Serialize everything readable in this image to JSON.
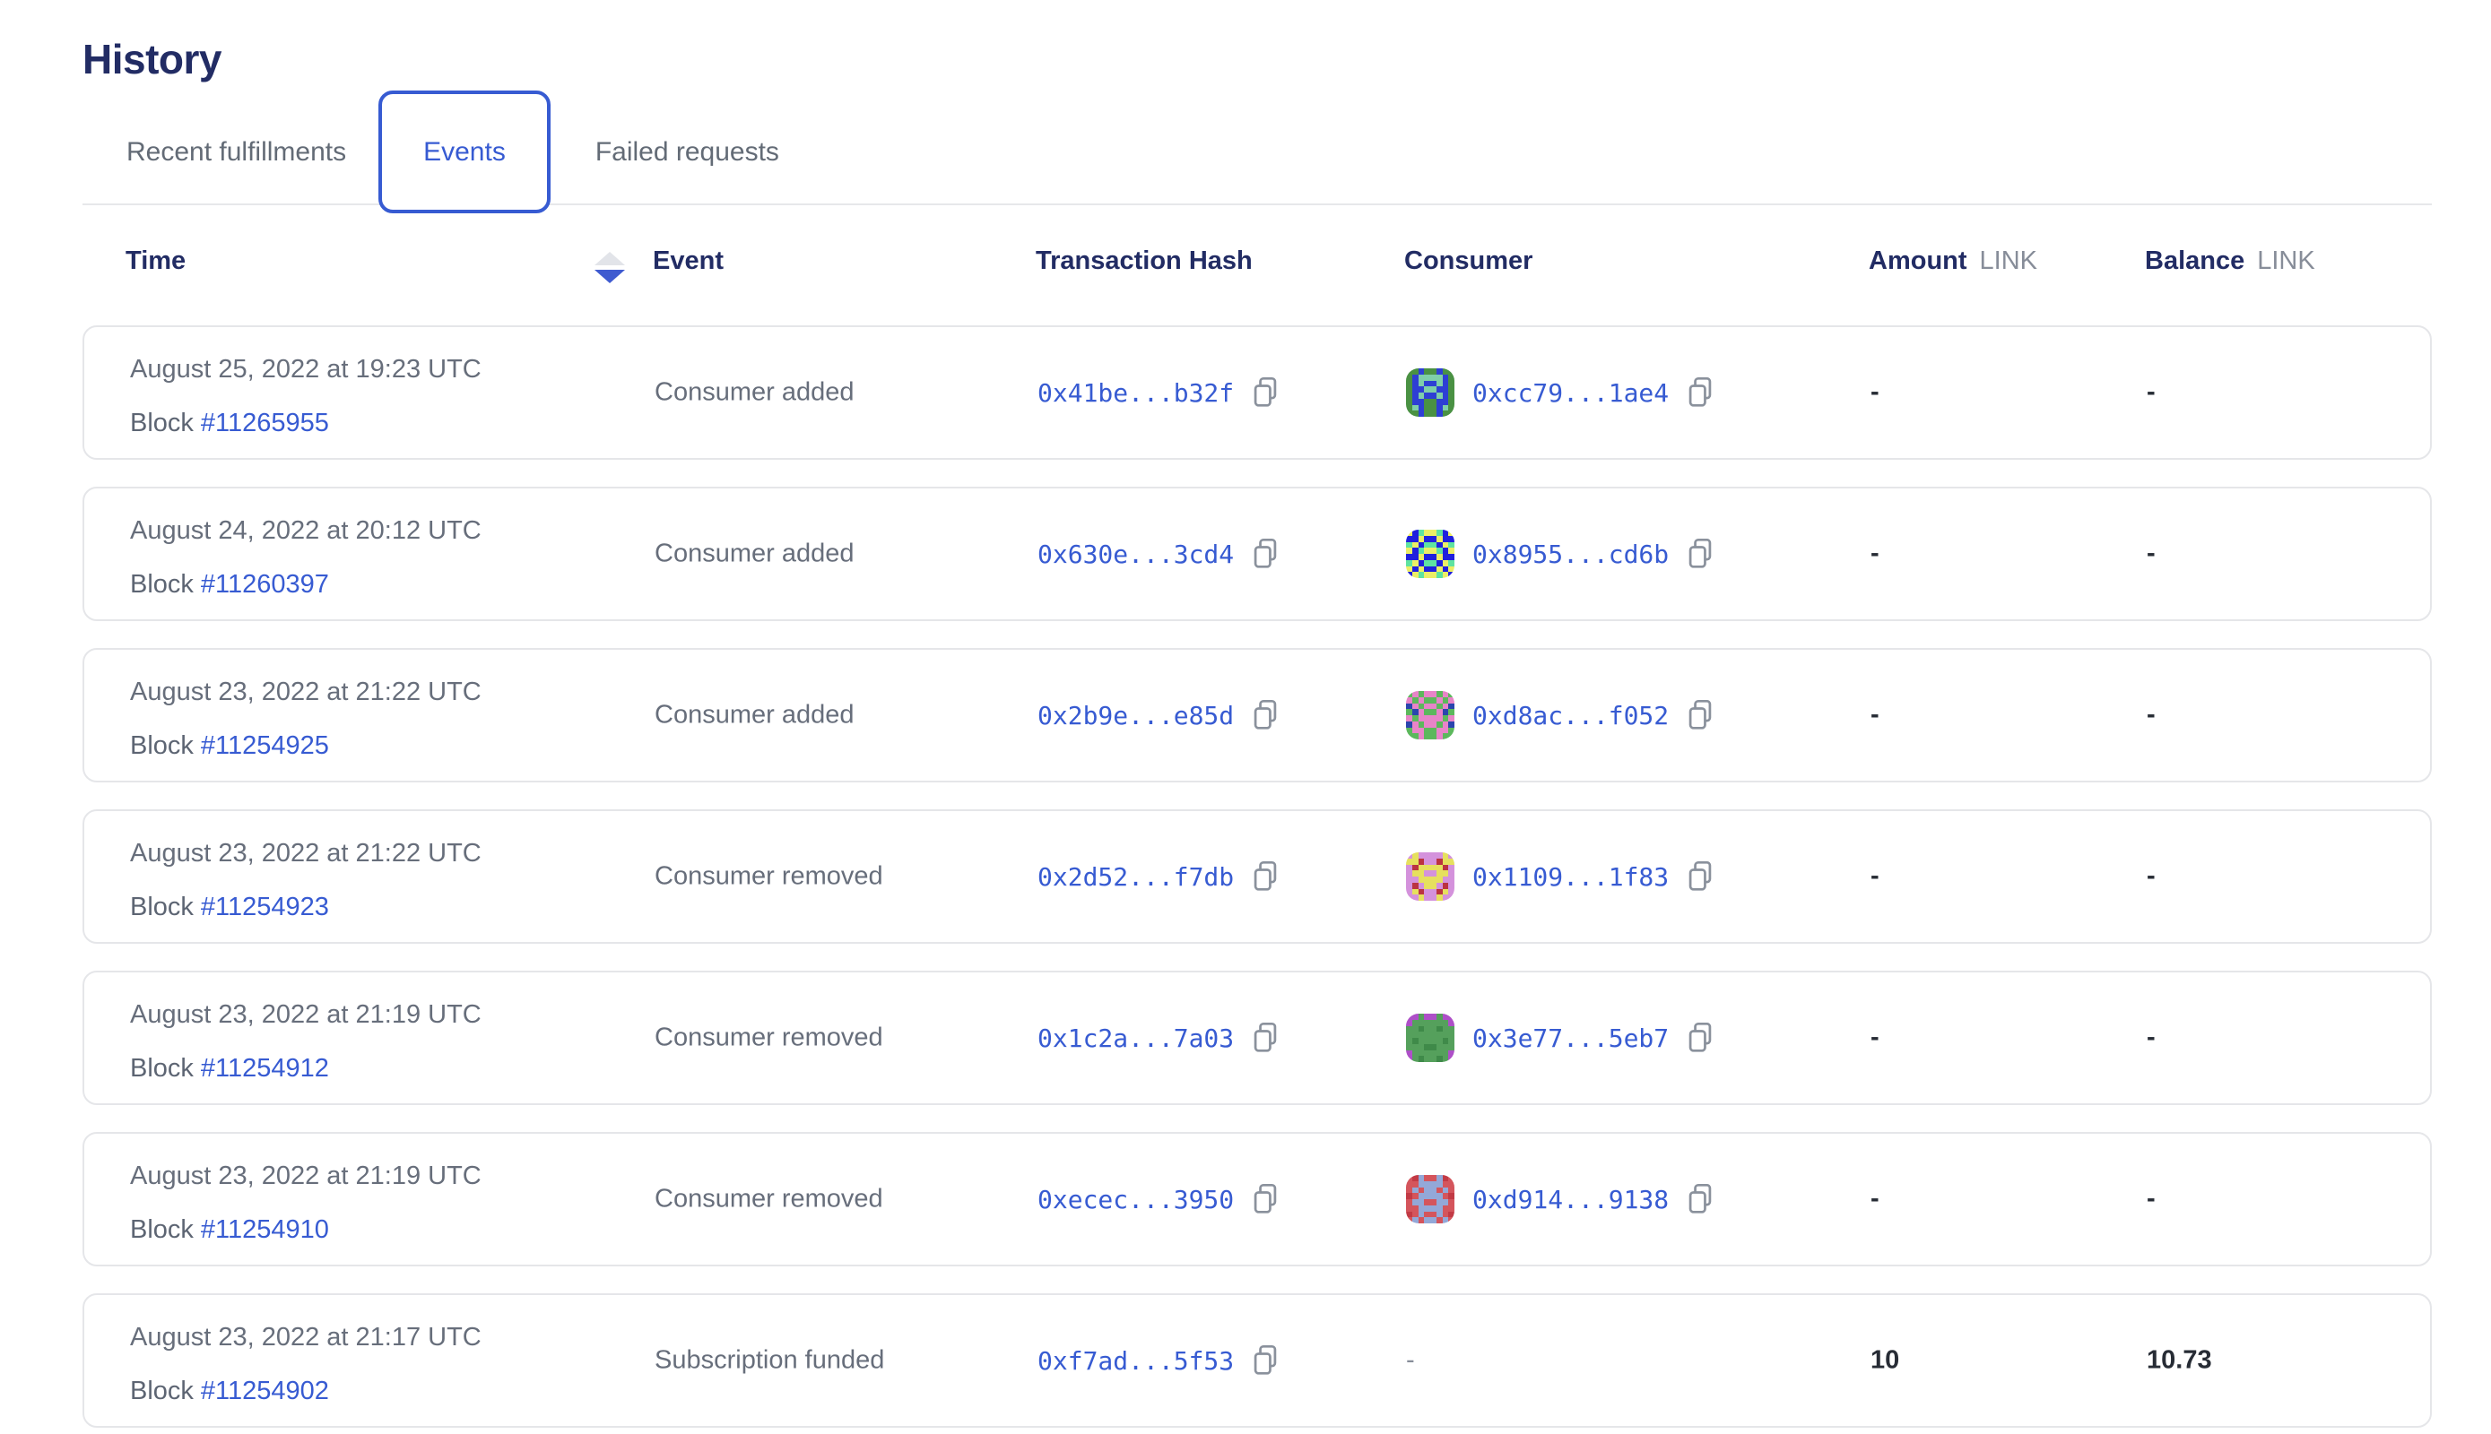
{
  "page": {
    "title": "History"
  },
  "colors": {
    "accent_blue": "#375bd2",
    "heading_navy": "#222c64",
    "muted_gray": "#676e7b",
    "link_unit_gray": "#878d99",
    "card_border": "#e5e6e9"
  },
  "tabs": [
    {
      "label": "Recent fulfillments",
      "active": false
    },
    {
      "label": "Events",
      "active": true
    },
    {
      "label": "Failed requests",
      "active": false
    }
  ],
  "table": {
    "columns": {
      "time": "Time",
      "event": "Event",
      "tx_hash": "Transaction Hash",
      "consumer": "Consumer",
      "amount": "Amount",
      "balance": "Balance",
      "link_unit": "LINK"
    },
    "labels": {
      "block": "Block"
    },
    "sort": {
      "column": "Time",
      "direction": "descending"
    },
    "rows": [
      {
        "date": "August 25, 2022 at 19:23 UTC",
        "block": "#11265955",
        "event": "Consumer added",
        "tx_hash": "0x41be...b32f",
        "consumer_hash": "0xcc79...1ae4",
        "amount": "-",
        "balance": "-",
        "identicon": {
          "palette": [
            "#4a9143",
            "#2e3fd4",
            "#7fceaa"
          ],
          "pixels": [
            "00100100",
            "01222210",
            "01211210",
            "01122110",
            "01211210",
            "01100110",
            "02100120",
            "00100100"
          ]
        }
      },
      {
        "date": "August 24, 2022 at 20:12 UTC",
        "block": "#11260397",
        "event": "Consumer added",
        "tx_hash": "0x630e...3cd4",
        "consumer_hash": "0x8955...cd6b",
        "amount": "-",
        "balance": "-",
        "identicon": {
          "palette": [
            "#2020dd",
            "#ecee66",
            "#5fe3a1"
          ],
          "pixels": [
            "10211201",
            "00100100",
            "21022012",
            "10211201",
            "00100100",
            "21022012",
            "10100101",
            "01211210"
          ]
        }
      },
      {
        "date": "August 23, 2022 at 21:22 UTC",
        "block": "#11254925",
        "event": "Consumer added",
        "tx_hash": "0x2b9e...e85d",
        "consumer_hash": "0xd8ac...f052",
        "amount": "-",
        "balance": "-",
        "identicon": {
          "palette": [
            "#5cb85c",
            "#e884c8",
            "#2a45ae"
          ],
          "pixels": [
            "01011010",
            "10100101",
            "21011012",
            "02100120",
            "10111101",
            "21011012",
            "01100110",
            "00100100"
          ]
        }
      },
      {
        "date": "August 23, 2022 at 21:22 UTC",
        "block": "#11254923",
        "event": "Consumer removed",
        "tx_hash": "0x2d52...f7db",
        "consumer_hash": "0x1109...1f83",
        "amount": "-",
        "balance": "-",
        "identicon": {
          "palette": [
            "#d492dc",
            "#e6e05e",
            "#bb3340"
          ],
          "pixels": [
            "01000010",
            "11200211",
            "02111120",
            "01100110",
            "00111100",
            "02011020",
            "01200210",
            "00100100"
          ]
        }
      },
      {
        "date": "August 23, 2022 at 21:19 UTC",
        "block": "#11254912",
        "event": "Consumer removed",
        "tx_hash": "0x1c2a...7a03",
        "consumer_hash": "0x3e77...5eb7",
        "amount": "-",
        "balance": "-",
        "identicon": {
          "palette": [
            "#55a05c",
            "#ae4fc8",
            "#3f8a49"
          ],
          "pixels": [
            "11011011",
            "10000001",
            "00200200",
            "00000000",
            "02000020",
            "00022000",
            "10000001",
            "10200201"
          ]
        }
      },
      {
        "date": "August 23, 2022 at 21:19 UTC",
        "block": "#11254910",
        "event": "Consumer removed",
        "tx_hash": "0xecec...3950",
        "consumer_hash": "0xd914...9138",
        "amount": "-",
        "balance": "-",
        "identicon": {
          "palette": [
            "#d4555c",
            "#93a8d8",
            "#c23a45"
          ],
          "pixels": [
            "02100120",
            "00111100",
            "01011010",
            "20111102",
            "01100110",
            "00111100",
            "20100102",
            "01011010"
          ]
        }
      },
      {
        "date": "August 23, 2022 at 21:17 UTC",
        "block": "#11254902",
        "event": "Subscription funded",
        "tx_hash": "0xf7ad...5f53",
        "consumer_dash": "-",
        "amount": "10",
        "balance": "10.73"
      }
    ]
  }
}
